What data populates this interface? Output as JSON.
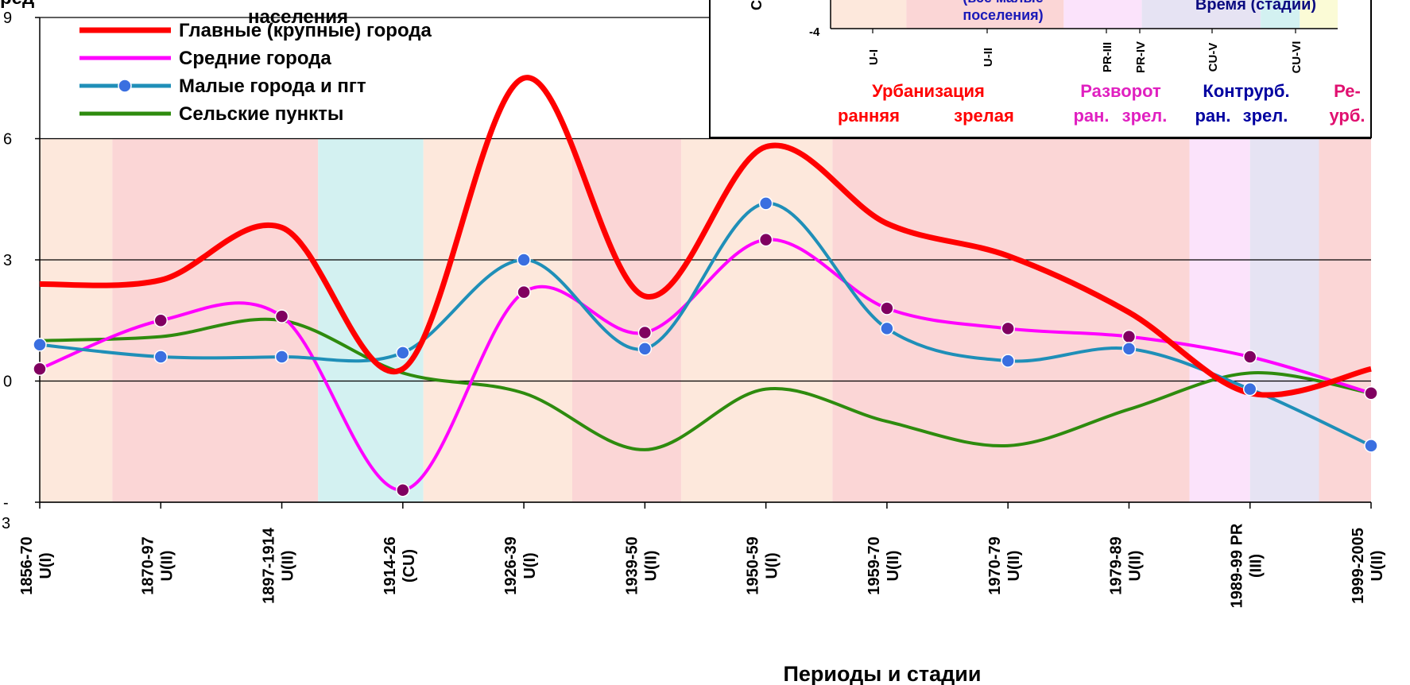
{
  "chart_data": {
    "type": "line",
    "title": "населения",
    "xlabel": "Периоды и стадии",
    "ylabel": "",
    "ylim": [
      -3,
      9
    ],
    "y_ticks": [
      "-3",
      "0",
      "3",
      "6",
      "9"
    ],
    "grid": "horizontal",
    "legend_position": "top-left",
    "categories": [
      [
        "1856-70",
        "U(I)"
      ],
      [
        "1870-97",
        "U(II)"
      ],
      [
        "1897-1914",
        "U(II)"
      ],
      [
        "1914-26",
        "(CU)"
      ],
      [
        "1926-39",
        "U(I)"
      ],
      [
        "1939-50",
        "U(II)"
      ],
      [
        "1950-59",
        "U(I)"
      ],
      [
        "1959-70",
        "U(II)"
      ],
      [
        "1970-79",
        "U(II)"
      ],
      [
        "1979-89",
        "U(II)"
      ],
      [
        "1989-99 PR",
        "(III)"
      ],
      [
        "1999-2005",
        "U(II)"
      ]
    ],
    "series": [
      {
        "name": "Главные (крупные) города",
        "color": "#ff0000",
        "marker": "none",
        "values": [
          2.4,
          2.5,
          3.8,
          0.3,
          7.5,
          2.1,
          5.8,
          3.9,
          3.1,
          1.7,
          -0.3,
          0.3
        ]
      },
      {
        "name": "Средние города",
        "color": "#ff00ff",
        "marker": "circle",
        "marker_color": "#800060",
        "values": [
          0.3,
          1.5,
          1.6,
          -2.7,
          2.2,
          1.2,
          3.5,
          1.8,
          1.3,
          1.1,
          0.6,
          -0.3
        ]
      },
      {
        "name": "Малые города и пгт",
        "color": "#1f8fb8",
        "marker": "circle",
        "marker_color": "#3a6fe0",
        "values": [
          0.9,
          0.6,
          0.6,
          0.7,
          3.0,
          0.8,
          4.4,
          1.3,
          0.5,
          0.8,
          -0.2,
          -1.6
        ]
      },
      {
        "name": "Сельские пункты",
        "color": "#2e8b0e",
        "marker": "none",
        "values": [
          1.0,
          1.1,
          1.5,
          0.2,
          -0.3,
          -1.7,
          -0.2,
          -1.0,
          -1.6,
          -0.7,
          0.2,
          -0.3
        ]
      }
    ],
    "background_bands": [
      {
        "from": 0,
        "to": 0.6,
        "color": "#fde8dc"
      },
      {
        "from": 0.6,
        "to": 2.3,
        "color": "#fbd6d6"
      },
      {
        "from": 2.3,
        "to": 3.17,
        "color": "#d3f1f1"
      },
      {
        "from": 3.17,
        "to": 4.4,
        "color": "#fde8dc"
      },
      {
        "from": 4.4,
        "to": 5.3,
        "color": "#fbd6d6"
      },
      {
        "from": 5.3,
        "to": 6.55,
        "color": "#fde8dc"
      },
      {
        "from": 6.55,
        "to": 9.5,
        "color": "#fbd6d6"
      },
      {
        "from": 9.5,
        "to": 10.0,
        "color": "#fbe3fb"
      },
      {
        "from": 10.0,
        "to": 10.57,
        "color": "#e6e3f3"
      },
      {
        "from": 10.57,
        "to": 11.0,
        "color": "#fbd6d6"
      }
    ]
  },
  "inset": {
    "side_label": "С",
    "y_tick": "-4",
    "note_lines": [
      "(все малые",
      "поселения)"
    ],
    "time_label": "Время (стадии)",
    "stage_ticks": [
      "U-I",
      "U-II",
      "PR-III",
      "PR-IV",
      "CU-V",
      "CU-VI"
    ],
    "phases": [
      {
        "title": "Урбанизация",
        "sub": [
          "ранняя",
          "зрелая"
        ],
        "color": "#ff0000"
      },
      {
        "title": "Разворот",
        "sub": [
          "ран.",
          "зрел."
        ],
        "color": "#e020c0"
      },
      {
        "title": "Контрурб.",
        "sub": [
          "ран.",
          "зрел."
        ],
        "color": "#0000a0"
      },
      {
        "title": "Ре-",
        "sub": [
          "урб."
        ],
        "color": "#e01070"
      }
    ],
    "bands": [
      "#fde8dc",
      "#fbd6d6",
      "#fbe3fb",
      "#e6e3f3",
      "#d3f1f1",
      "#fbfbd6"
    ]
  },
  "header_partial": "ред"
}
